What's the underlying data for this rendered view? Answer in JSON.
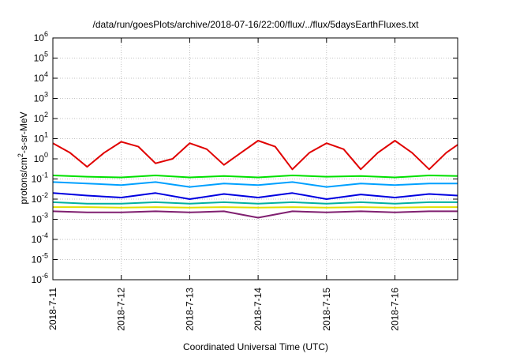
{
  "chart_data": {
    "type": "line",
    "title": "/data/run/goesPlots/archive/2018-07-16/22:00/flux/../flux/5daysEarthFluxes.txt",
    "xlabel": "Coordinated Universal Time (UTC)",
    "ylabel": {
      "prefix": "protons/cm",
      "sup": "2",
      "suffix": "-s-sr-MeV"
    },
    "x_range": [
      "2018-07-11 00:00",
      "2018-07-16 22:00"
    ],
    "x_ticks": [
      "2018-7-11",
      "2018-7-12",
      "2018-7-13",
      "2018-7-14",
      "2018-7-15",
      "2018-7-16"
    ],
    "y_scale": "log",
    "ylim": [
      1e-06,
      1000000.0
    ],
    "y_ticks": [
      {
        "base": "10",
        "exp": "-6"
      },
      {
        "base": "10",
        "exp": "-5"
      },
      {
        "base": "10",
        "exp": "-4"
      },
      {
        "base": "10",
        "exp": "-3"
      },
      {
        "base": "10",
        "exp": "-2"
      },
      {
        "base": "10",
        "exp": "-1"
      },
      {
        "base": "10",
        "exp": "0"
      },
      {
        "base": "10",
        "exp": "1"
      },
      {
        "base": "10",
        "exp": "2"
      },
      {
        "base": "10",
        "exp": "3"
      },
      {
        "base": "10",
        "exp": "4"
      },
      {
        "base": "10",
        "exp": "5"
      },
      {
        "base": "10",
        "exp": "6"
      }
    ],
    "grid": true,
    "series": [
      {
        "color": "#e00000",
        "x": [
          "2018-07-11 00:00",
          "2018-07-11 06:00",
          "2018-07-11 12:00",
          "2018-07-11 18:00",
          "2018-07-12 00:00",
          "2018-07-12 06:00",
          "2018-07-12 12:00",
          "2018-07-12 18:00",
          "2018-07-13 00:00",
          "2018-07-13 06:00",
          "2018-07-13 12:00",
          "2018-07-13 18:00",
          "2018-07-14 00:00",
          "2018-07-14 06:00",
          "2018-07-14 12:00",
          "2018-07-14 18:00",
          "2018-07-15 00:00",
          "2018-07-15 06:00",
          "2018-07-15 12:00",
          "2018-07-15 18:00",
          "2018-07-16 00:00",
          "2018-07-16 06:00",
          "2018-07-16 12:00",
          "2018-07-16 18:00",
          "2018-07-16 22:00"
        ],
        "values": [
          6,
          2,
          0.4,
          2,
          7,
          4,
          0.6,
          1,
          6,
          3,
          0.5,
          2,
          8,
          4,
          0.3,
          2,
          6,
          3,
          0.3,
          2,
          8,
          2,
          0.3,
          2,
          5
        ]
      },
      {
        "color": "#00e000",
        "x": [
          "2018-07-11 00:00",
          "2018-07-11 12:00",
          "2018-07-12 00:00",
          "2018-07-12 12:00",
          "2018-07-13 00:00",
          "2018-07-13 12:00",
          "2018-07-14 00:00",
          "2018-07-14 12:00",
          "2018-07-15 00:00",
          "2018-07-15 12:00",
          "2018-07-16 00:00",
          "2018-07-16 12:00",
          "2018-07-16 22:00"
        ],
        "values": [
          0.15,
          0.13,
          0.12,
          0.15,
          0.12,
          0.14,
          0.12,
          0.15,
          0.13,
          0.14,
          0.12,
          0.15,
          0.14
        ]
      },
      {
        "color": "#00a0ff",
        "x": [
          "2018-07-11 00:00",
          "2018-07-11 12:00",
          "2018-07-12 00:00",
          "2018-07-12 12:00",
          "2018-07-13 00:00",
          "2018-07-13 12:00",
          "2018-07-14 00:00",
          "2018-07-14 12:00",
          "2018-07-15 00:00",
          "2018-07-15 12:00",
          "2018-07-16 00:00",
          "2018-07-16 12:00",
          "2018-07-16 22:00"
        ],
        "values": [
          0.07,
          0.06,
          0.05,
          0.07,
          0.04,
          0.06,
          0.05,
          0.07,
          0.04,
          0.06,
          0.05,
          0.06,
          0.06
        ]
      },
      {
        "color": "#0000e0",
        "x": [
          "2018-07-11 00:00",
          "2018-07-11 12:00",
          "2018-07-12 00:00",
          "2018-07-12 12:00",
          "2018-07-13 00:00",
          "2018-07-13 12:00",
          "2018-07-14 00:00",
          "2018-07-14 12:00",
          "2018-07-15 00:00",
          "2018-07-15 12:00",
          "2018-07-16 00:00",
          "2018-07-16 12:00",
          "2018-07-16 22:00"
        ],
        "values": [
          0.02,
          0.015,
          0.012,
          0.02,
          0.01,
          0.018,
          0.012,
          0.02,
          0.01,
          0.017,
          0.012,
          0.018,
          0.015
        ]
      },
      {
        "color": "#00b0a0",
        "x": [
          "2018-07-11 00:00",
          "2018-07-11 12:00",
          "2018-07-12 00:00",
          "2018-07-12 12:00",
          "2018-07-13 00:00",
          "2018-07-13 12:00",
          "2018-07-14 00:00",
          "2018-07-14 12:00",
          "2018-07-15 00:00",
          "2018-07-15 12:00",
          "2018-07-16 00:00",
          "2018-07-16 12:00",
          "2018-07-16 22:00"
        ],
        "values": [
          0.007,
          0.006,
          0.006,
          0.007,
          0.006,
          0.007,
          0.006,
          0.007,
          0.006,
          0.007,
          0.006,
          0.007,
          0.007
        ]
      },
      {
        "color": "#e0e000",
        "x": [
          "2018-07-11 00:00",
          "2018-07-11 12:00",
          "2018-07-12 00:00",
          "2018-07-12 12:00",
          "2018-07-13 00:00",
          "2018-07-13 12:00",
          "2018-07-14 00:00",
          "2018-07-14 12:00",
          "2018-07-15 00:00",
          "2018-07-15 12:00",
          "2018-07-16 00:00",
          "2018-07-16 12:00",
          "2018-07-16 22:00"
        ],
        "values": [
          0.004,
          0.004,
          0.0038,
          0.004,
          0.0038,
          0.004,
          0.0038,
          0.004,
          0.0038,
          0.004,
          0.0038,
          0.004,
          0.004
        ]
      },
      {
        "color": "#802070",
        "x": [
          "2018-07-11 00:00",
          "2018-07-11 12:00",
          "2018-07-12 00:00",
          "2018-07-12 12:00",
          "2018-07-13 00:00",
          "2018-07-13 12:00",
          "2018-07-14 00:00",
          "2018-07-14 12:00",
          "2018-07-15 00:00",
          "2018-07-15 12:00",
          "2018-07-16 00:00",
          "2018-07-16 12:00",
          "2018-07-16 22:00"
        ],
        "values": [
          0.0025,
          0.0022,
          0.0022,
          0.0025,
          0.0022,
          0.0025,
          0.0012,
          0.0025,
          0.0022,
          0.0025,
          0.0022,
          0.0025,
          0.0025
        ]
      }
    ]
  }
}
